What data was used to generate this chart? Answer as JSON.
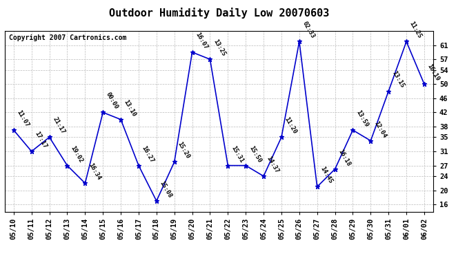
{
  "title": "Outdoor Humidity Daily Low 20070603",
  "copyright": "Copyright 2007 Cartronics.com",
  "x_labels": [
    "05/10",
    "05/11",
    "05/12",
    "05/13",
    "05/14",
    "05/15",
    "05/16",
    "05/17",
    "05/18",
    "05/19",
    "05/20",
    "05/21",
    "05/22",
    "05/23",
    "05/24",
    "05/25",
    "05/26",
    "05/27",
    "05/28",
    "05/29",
    "05/30",
    "05/31",
    "06/01",
    "06/02"
  ],
  "y_values": [
    37,
    31,
    35,
    27,
    22,
    42,
    40,
    27,
    17,
    28,
    59,
    57,
    27,
    27,
    24,
    35,
    62,
    21,
    26,
    37,
    34,
    48,
    62,
    50
  ],
  "annotations": [
    "11:07",
    "17:17",
    "21:17",
    "19:02",
    "16:34",
    "00:00",
    "13:10",
    "16:27",
    "15:08",
    "15:20",
    "16:07",
    "13:25",
    "15:31",
    "15:50",
    "14:37",
    "11:20",
    "02:33",
    "14:45",
    "16:18",
    "13:59",
    "12:04",
    "13:15",
    "11:25",
    "16:19"
  ],
  "line_color": "#0000cc",
  "marker_color": "#0000cc",
  "bg_color": "#ffffff",
  "grid_color": "#bbbbbb",
  "ylim": [
    14,
    65
  ],
  "yticks": [
    16,
    20,
    24,
    27,
    31,
    35,
    38,
    42,
    46,
    50,
    54,
    57,
    61
  ],
  "title_fontsize": 11,
  "annotation_fontsize": 6.5,
  "copyright_fontsize": 7,
  "tick_fontsize": 7.5
}
